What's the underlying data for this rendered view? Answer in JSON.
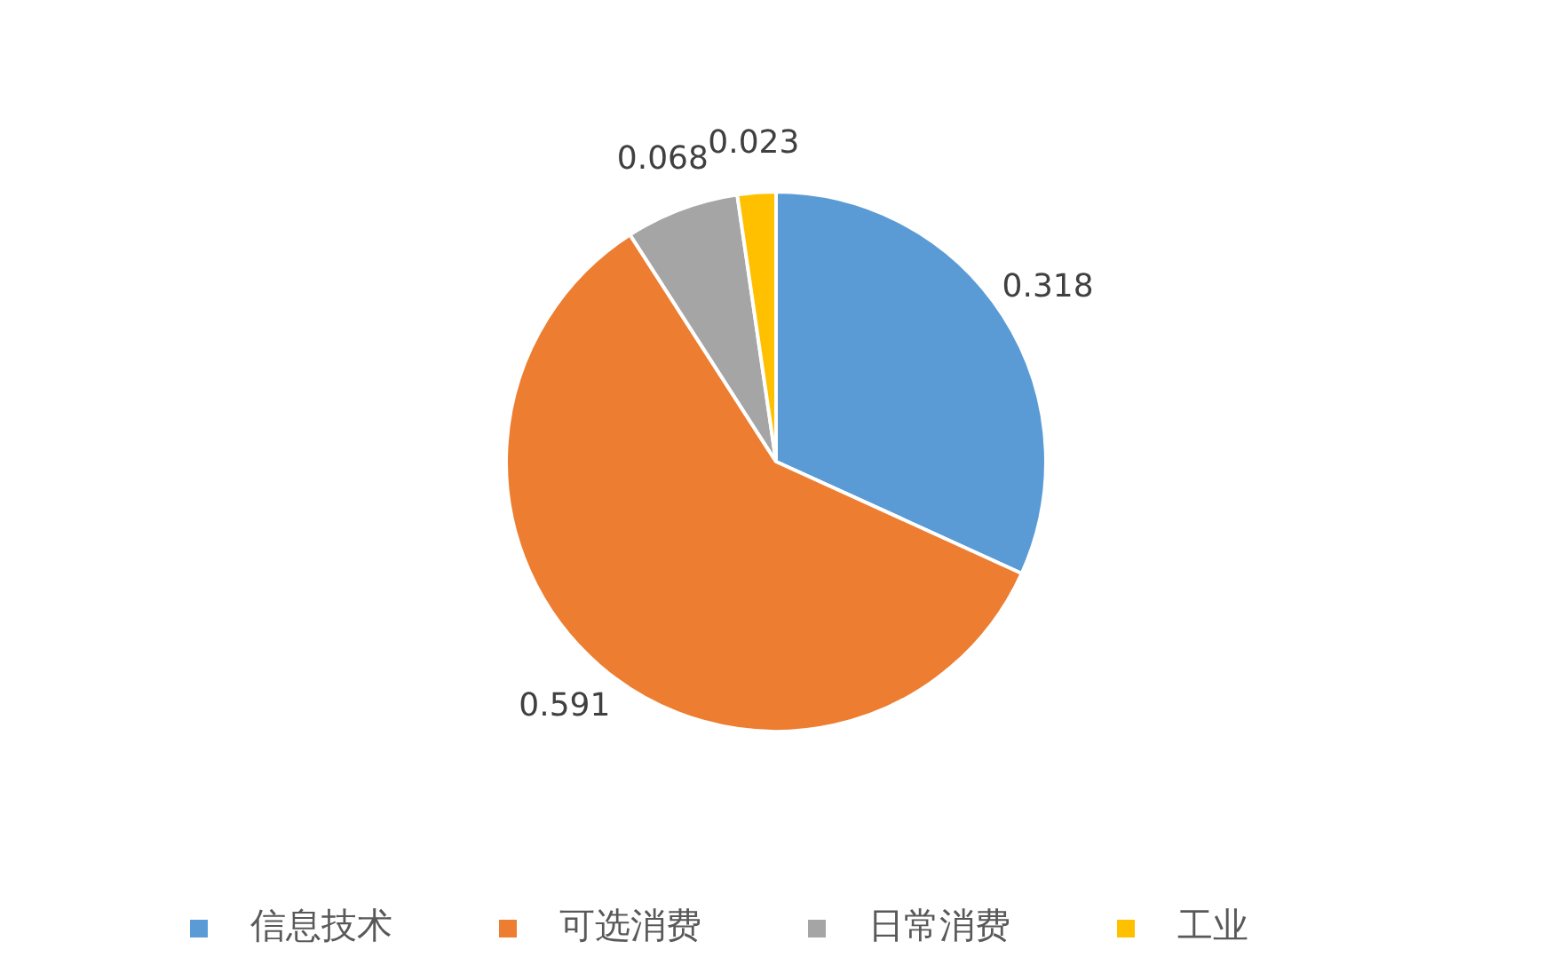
{
  "chart_data": {
    "type": "pie",
    "categories": [
      "信息技术",
      "可选消费",
      "日常消费",
      "工业"
    ],
    "values": [
      0.318,
      0.591,
      0.068,
      0.023
    ],
    "colors": [
      "#5b9bd5",
      "#ed7d31",
      "#a5a5a5",
      "#ffc000"
    ],
    "data_labels": true,
    "legend": "bottom"
  }
}
